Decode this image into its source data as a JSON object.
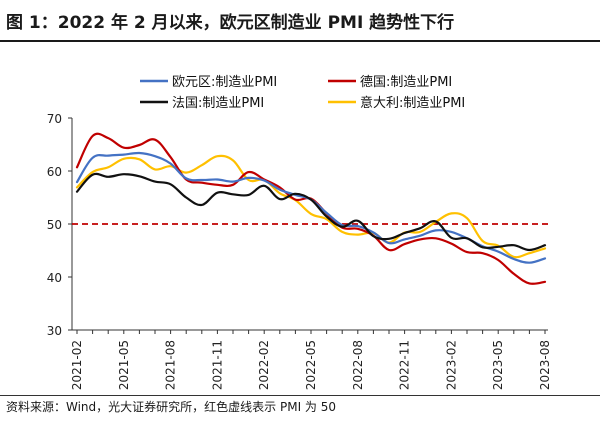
{
  "header": {
    "title": "图 1：2022 年 2 月以来，欧元区制造业 PMI 趋势性下行"
  },
  "footer": {
    "source": "资料来源：Wind，光大证券研究所，红色虚线表示 PMI 为 50"
  },
  "chart_data": {
    "type": "line",
    "title": "图 1：2022 年 2 月以来，欧元区制造业 PMI 趋势性下行",
    "xlabel": "",
    "ylabel": "",
    "ylim": [
      30,
      70
    ],
    "yticks": [
      30,
      40,
      50,
      60,
      70
    ],
    "grid": false,
    "legend_position": "top",
    "reference_line": {
      "y": 50,
      "color": "#c00000",
      "style": "dashed"
    },
    "x": [
      "2021-02",
      "2021-03",
      "2021-04",
      "2021-05",
      "2021-06",
      "2021-07",
      "2021-08",
      "2021-09",
      "2021-10",
      "2021-11",
      "2021-12",
      "2022-01",
      "2022-02",
      "2022-03",
      "2022-04",
      "2022-05",
      "2022-06",
      "2022-07",
      "2022-08",
      "2022-09",
      "2022-10",
      "2022-11",
      "2022-12",
      "2023-01",
      "2023-02",
      "2023-03",
      "2023-04",
      "2023-05",
      "2023-06",
      "2023-07",
      "2023-08"
    ],
    "xticks": [
      "2021-02",
      "2021-05",
      "2021-08",
      "2021-11",
      "2022-02",
      "2022-05",
      "2022-08",
      "2022-11",
      "2023-02",
      "2023-05",
      "2023-08"
    ],
    "series": [
      {
        "name": "欧元区:制造业PMI",
        "color": "#4472c4",
        "values": [
          57.9,
          62.5,
          62.9,
          63.1,
          63.4,
          62.8,
          61.4,
          58.6,
          58.3,
          58.4,
          58.0,
          58.7,
          58.2,
          56.5,
          55.5,
          54.6,
          52.1,
          49.8,
          49.6,
          48.4,
          46.4,
          47.1,
          47.8,
          48.8,
          48.5,
          47.3,
          45.8,
          44.8,
          43.4,
          42.7,
          43.5
        ]
      },
      {
        "name": "德国:制造业PMI",
        "color": "#c00000",
        "values": [
          60.7,
          66.6,
          66.2,
          64.4,
          64.9,
          65.9,
          62.6,
          58.4,
          57.8,
          57.4,
          57.4,
          59.8,
          58.4,
          56.9,
          54.6,
          54.8,
          52.0,
          49.3,
          49.1,
          47.8,
          45.1,
          46.2,
          47.1,
          47.3,
          46.3,
          44.7,
          44.5,
          43.2,
          40.6,
          38.8,
          39.1
        ]
      },
      {
        "name": "法国:制造业PMI",
        "color": "#111111",
        "values": [
          56.1,
          59.3,
          58.9,
          59.4,
          59.0,
          58.0,
          57.5,
          55.0,
          53.6,
          55.9,
          55.6,
          55.5,
          57.2,
          54.7,
          55.7,
          54.6,
          51.4,
          49.5,
          50.6,
          47.7,
          47.2,
          48.3,
          49.2,
          50.5,
          47.4,
          47.3,
          45.6,
          45.7,
          46.0,
          45.1,
          46.0
        ]
      },
      {
        "name": "意大利:制造业PMI",
        "color": "#ffc000",
        "values": [
          56.9,
          59.8,
          60.7,
          62.3,
          62.2,
          60.3,
          60.9,
          59.7,
          61.1,
          62.8,
          62.0,
          58.3,
          58.3,
          55.8,
          54.5,
          51.9,
          50.9,
          48.5,
          48.0,
          48.3,
          46.5,
          48.4,
          48.5,
          50.4,
          52.0,
          51.1,
          46.8,
          45.9,
          43.8,
          44.5,
          45.4
        ]
      }
    ]
  }
}
